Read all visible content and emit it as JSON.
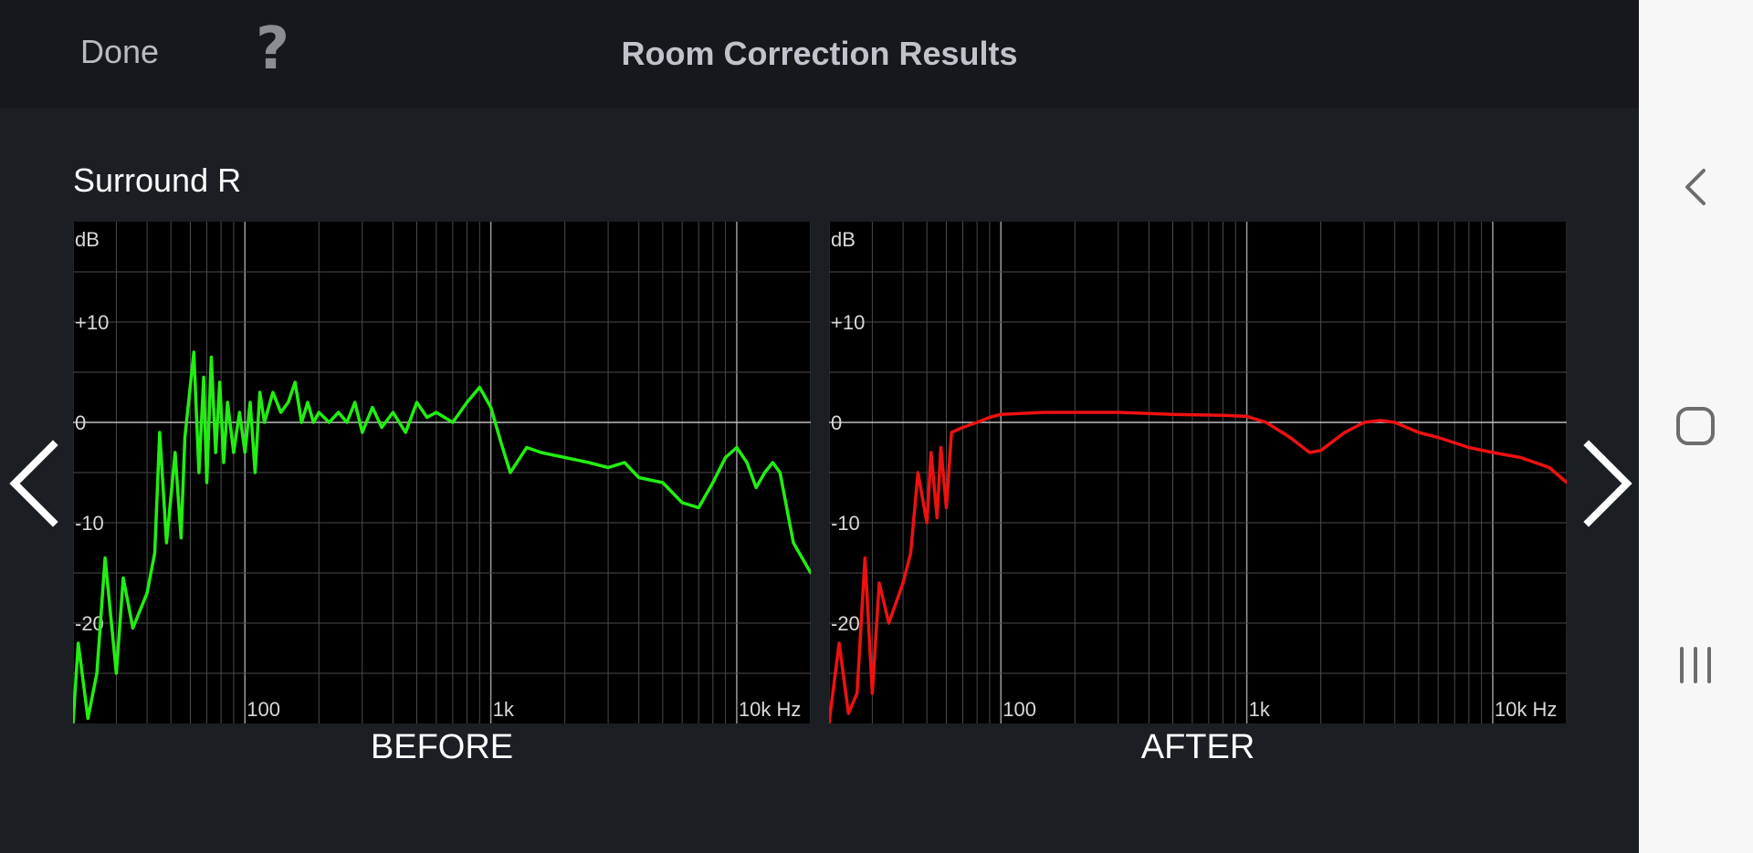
{
  "header": {
    "done_label": "Done",
    "help_label": "?",
    "title": "Room Correction Results"
  },
  "channel_name": "Surround R",
  "graphs": {
    "before_label": "BEFORE",
    "after_label": "AFTER",
    "y_unit": "dB",
    "y_ticks": [
      "+10",
      "0",
      "-10",
      "-20"
    ],
    "x_ticks": [
      "100",
      "1k",
      "10k Hz"
    ],
    "before_color": "#22ee11",
    "after_color": "#ee1111"
  },
  "nav": {
    "prev_icon": "chevron-left-icon",
    "next_icon": "chevron-right-icon"
  },
  "system_nav": {
    "back_icon": "back-icon",
    "home_icon": "home-icon",
    "recents_icon": "recents-icon"
  },
  "chart_data": [
    {
      "type": "line",
      "title": "BEFORE",
      "ylabel": "dB",
      "xlabel": "",
      "x_scale": "log",
      "xlim": [
        20,
        20000
      ],
      "ylim": [
        -30,
        20
      ],
      "x_ticks": [
        "100",
        "1k",
        "10k Hz"
      ],
      "y_ticks": [
        "+10",
        "0",
        "-10",
        "-20"
      ],
      "series": [
        {
          "color": "#22ee11",
          "points": [
            [
              20,
              -30
            ],
            [
              21,
              -22
            ],
            [
              23,
              -29.5
            ],
            [
              25,
              -25
            ],
            [
              27,
              -13.5
            ],
            [
              30,
              -25
            ],
            [
              32,
              -15.5
            ],
            [
              35,
              -20.5
            ],
            [
              40,
              -17
            ],
            [
              43,
              -13
            ],
            [
              45,
              -1
            ],
            [
              48,
              -12
            ],
            [
              52,
              -3
            ],
            [
              55,
              -11.5
            ],
            [
              57,
              -1.5
            ],
            [
              62,
              7
            ],
            [
              65,
              -5
            ],
            [
              68,
              4.5
            ],
            [
              70,
              -6
            ],
            [
              73,
              6.5
            ],
            [
              76,
              -3
            ],
            [
              79,
              4
            ],
            [
              82,
              -4
            ],
            [
              85,
              2
            ],
            [
              90,
              -3
            ],
            [
              95,
              1
            ],
            [
              100,
              -3
            ],
            [
              105,
              2
            ],
            [
              110,
              -5
            ],
            [
              115,
              3
            ],
            [
              120,
              0
            ],
            [
              130,
              3
            ],
            [
              140,
              1
            ],
            [
              150,
              2
            ],
            [
              160,
              4
            ],
            [
              170,
              0
            ],
            [
              180,
              2
            ],
            [
              190,
              0
            ],
            [
              200,
              1
            ],
            [
              220,
              0
            ],
            [
              240,
              1
            ],
            [
              260,
              0
            ],
            [
              280,
              2
            ],
            [
              300,
              -1
            ],
            [
              330,
              1.5
            ],
            [
              360,
              -0.5
            ],
            [
              400,
              1
            ],
            [
              450,
              -1
            ],
            [
              500,
              2
            ],
            [
              550,
              0.5
            ],
            [
              600,
              1
            ],
            [
              700,
              0
            ],
            [
              800,
              2
            ],
            [
              900,
              3.5
            ],
            [
              1000,
              1.5
            ],
            [
              1100,
              -2
            ],
            [
              1200,
              -5
            ],
            [
              1400,
              -2.5
            ],
            [
              1600,
              -3
            ],
            [
              2000,
              -3.5
            ],
            [
              2500,
              -4
            ],
            [
              3000,
              -4.5
            ],
            [
              3500,
              -4
            ],
            [
              4000,
              -5.5
            ],
            [
              5000,
              -6
            ],
            [
              6000,
              -8
            ],
            [
              7000,
              -8.5
            ],
            [
              8000,
              -6
            ],
            [
              9000,
              -3.5
            ],
            [
              10000,
              -2.5
            ],
            [
              11000,
              -4
            ],
            [
              12000,
              -6.5
            ],
            [
              13000,
              -5
            ],
            [
              14000,
              -4
            ],
            [
              15000,
              -5
            ],
            [
              17000,
              -12
            ],
            [
              20000,
              -15
            ]
          ]
        }
      ]
    },
    {
      "type": "line",
      "title": "AFTER",
      "ylabel": "dB",
      "xlabel": "",
      "x_scale": "log",
      "xlim": [
        20,
        20000
      ],
      "ylim": [
        -30,
        20
      ],
      "x_ticks": [
        "100",
        "1k",
        "10k Hz"
      ],
      "y_ticks": [
        "+10",
        "0",
        "-10",
        "-20"
      ],
      "series": [
        {
          "color": "#ee1111",
          "points": [
            [
              20,
              -30
            ],
            [
              22,
              -22
            ],
            [
              24,
              -29
            ],
            [
              26,
              -27
            ],
            [
              28,
              -13.5
            ],
            [
              30,
              -27
            ],
            [
              32,
              -16
            ],
            [
              35,
              -20
            ],
            [
              40,
              -16
            ],
            [
              43,
              -13
            ],
            [
              46,
              -5
            ],
            [
              50,
              -10
            ],
            [
              52,
              -3
            ],
            [
              55,
              -9.5
            ],
            [
              57,
              -2.5
            ],
            [
              60,
              -8.5
            ],
            [
              63,
              -1
            ],
            [
              70,
              -0.5
            ],
            [
              80,
              0
            ],
            [
              90,
              0.5
            ],
            [
              100,
              0.8
            ],
            [
              150,
              1
            ],
            [
              200,
              1
            ],
            [
              300,
              1
            ],
            [
              500,
              0.8
            ],
            [
              800,
              0.7
            ],
            [
              1000,
              0.6
            ],
            [
              1200,
              0
            ],
            [
              1500,
              -1.5
            ],
            [
              1800,
              -3
            ],
            [
              2000,
              -2.8
            ],
            [
              2500,
              -1
            ],
            [
              3000,
              0
            ],
            [
              3500,
              0.2
            ],
            [
              4000,
              0
            ],
            [
              5000,
              -1
            ],
            [
              6000,
              -1.5
            ],
            [
              8000,
              -2.5
            ],
            [
              10000,
              -3
            ],
            [
              13000,
              -3.5
            ],
            [
              17000,
              -4.5
            ],
            [
              20000,
              -6
            ]
          ]
        }
      ]
    }
  ]
}
